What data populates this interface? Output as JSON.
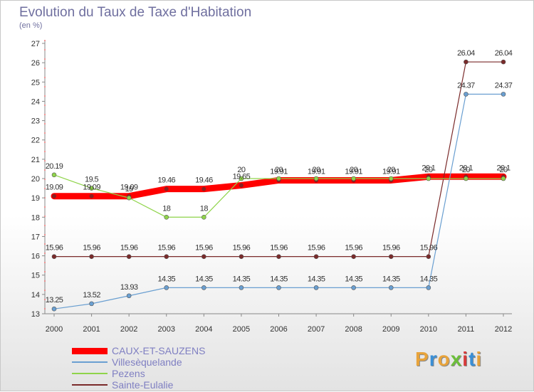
{
  "header": {
    "title": "Evolution du Taux de Taxe d'Habitation",
    "unit": "(en %)"
  },
  "logo": {
    "text": "Proxiti",
    "colors": [
      "#e8a33a",
      "#3a8fd6",
      "#e8a33a",
      "#6cbf3a",
      "#d63a3a",
      "#3a8fd6",
      "#e8a33a"
    ]
  },
  "chart_data": {
    "type": "line",
    "title": "Evolution du Taux de Taxe d'Habitation",
    "ylabel": "(en %)",
    "xlabel": "",
    "x": [
      "2000",
      "2001",
      "2002",
      "2003",
      "2004",
      "2005",
      "2006",
      "2007",
      "2008",
      "2009",
      "2010",
      "2011",
      "2012"
    ],
    "ylim": [
      13,
      27
    ],
    "yticks": [
      "13",
      "14",
      "15",
      "16",
      "17",
      "18",
      "19",
      "20",
      "21",
      "22",
      "23",
      "24",
      "25",
      "26",
      "27"
    ],
    "grid": false,
    "legend_position": "bottom-left",
    "series": [
      {
        "name": "CAUX-ET-SAUZENS",
        "color": "#ff0000",
        "width": 9,
        "values": [
          19.09,
          19.09,
          19.09,
          19.46,
          19.46,
          19.65,
          19.91,
          19.91,
          19.91,
          19.91,
          20.1,
          20.1,
          20.1
        ],
        "labels": [
          "19.09",
          "19.09",
          "19.09",
          "19.46",
          "19.46",
          "19.65",
          "19.91",
          "19.91",
          "19.91",
          "19.91",
          "20.1",
          "20.1",
          "20.1"
        ]
      },
      {
        "name": "Villesèquelande",
        "color": "#6a9fd1",
        "width": 1.2,
        "values": [
          13.25,
          13.52,
          13.93,
          14.35,
          14.35,
          14.35,
          14.35,
          14.35,
          14.35,
          14.35,
          14.35,
          24.37,
          24.37
        ],
        "labels": [
          "13.25",
          "13.52",
          "13.93",
          "14.35",
          "14.35",
          "14.35",
          "14.35",
          "14.35",
          "14.35",
          "14.35",
          "14.35",
          "24.37",
          "24.37"
        ]
      },
      {
        "name": "Pezens",
        "color": "#8fd44a",
        "width": 1.2,
        "values": [
          20.19,
          19.5,
          19,
          18,
          18,
          20,
          20,
          20,
          20,
          20,
          20,
          20,
          20
        ],
        "labels": [
          "20.19",
          "19.5",
          "19",
          "18",
          "18",
          "20",
          "20",
          "20",
          "20",
          "20",
          "20",
          "20",
          "20"
        ]
      },
      {
        "name": "Sainte-Eulalie",
        "color": "#7a2a2a",
        "width": 1.2,
        "values": [
          15.96,
          15.96,
          15.96,
          15.96,
          15.96,
          15.96,
          15.96,
          15.96,
          15.96,
          15.96,
          15.96,
          26.04,
          26.04
        ],
        "labels": [
          "15.96",
          "15.96",
          "15.96",
          "15.96",
          "15.96",
          "15.96",
          "15.96",
          "15.96",
          "15.96",
          "15.96",
          "15.96",
          "26.04",
          "26.04"
        ]
      }
    ]
  }
}
